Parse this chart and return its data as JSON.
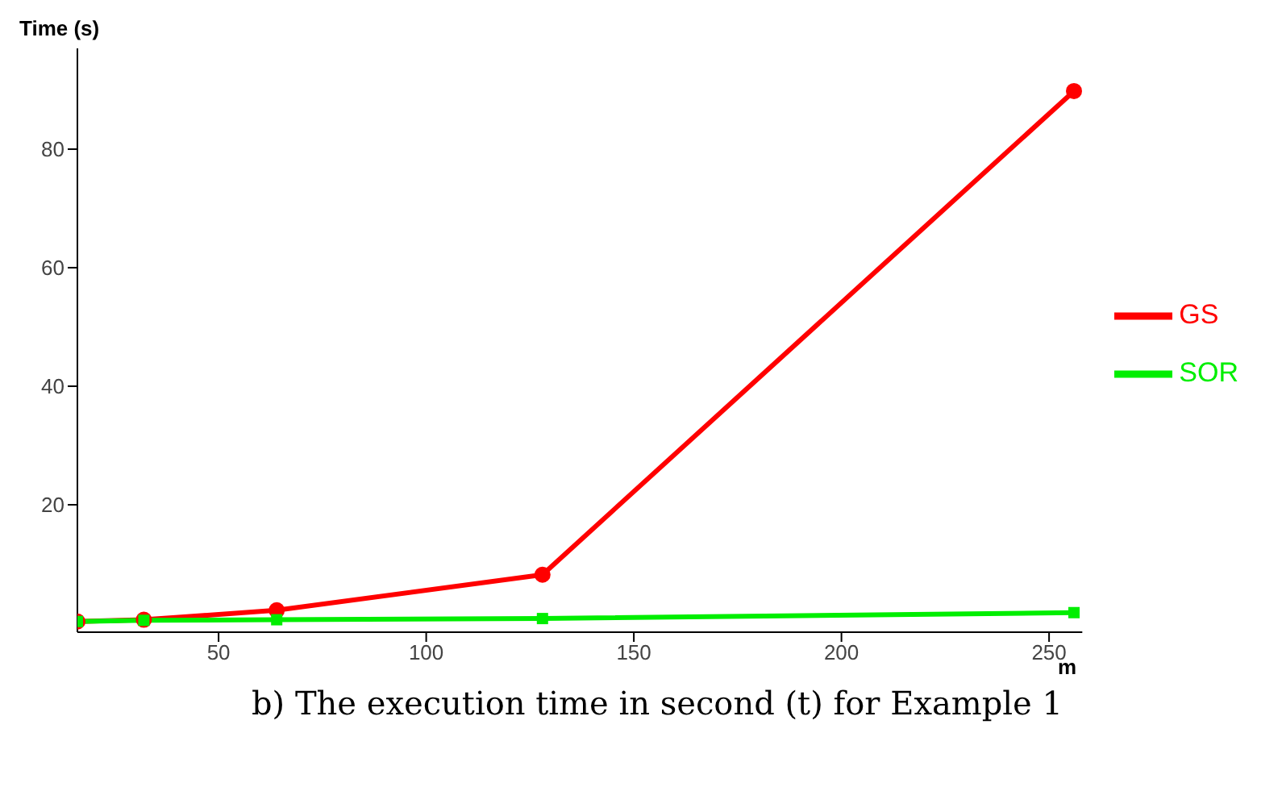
{
  "chart_data": {
    "type": "line",
    "xlabel": "m",
    "ylabel": "Time (s)",
    "x": [
      16,
      32,
      64,
      128,
      256
    ],
    "series": [
      {
        "name": "GS",
        "color": "#ff0000",
        "marker": "circle",
        "values": [
          0.3,
          0.6,
          2.2,
          8.2,
          89.8
        ]
      },
      {
        "name": "SOR",
        "color": "#00ee00",
        "marker": "square",
        "values": [
          0.3,
          0.5,
          0.6,
          0.8,
          1.8
        ]
      }
    ],
    "xlim": [
      16,
      258
    ],
    "xticks": [
      50,
      100,
      150,
      200,
      250
    ],
    "ylim": [
      -1.5,
      97
    ],
    "yticks": [
      20,
      40,
      60,
      80
    ],
    "grid": false,
    "legend": "right",
    "annotations": [
      "b) The execution time in second (t) for Example 1"
    ]
  }
}
